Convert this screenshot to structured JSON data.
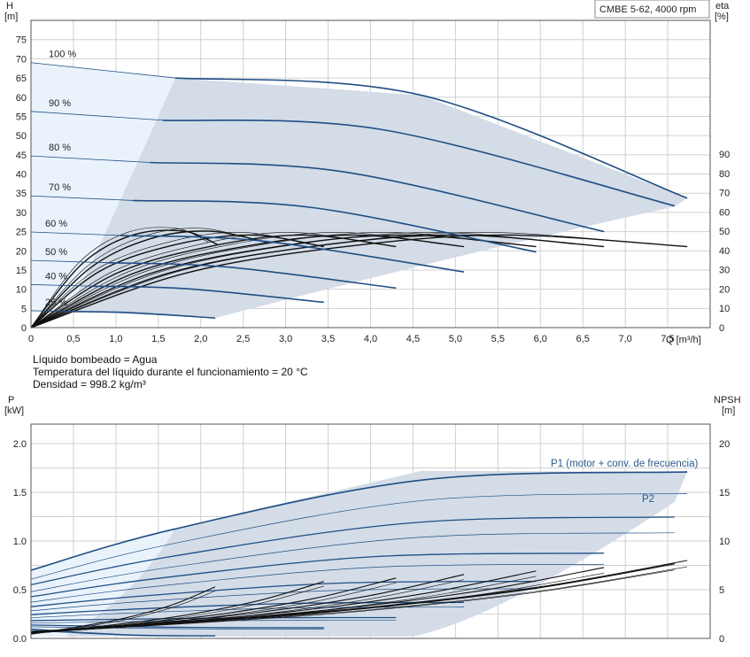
{
  "colors": {
    "area_light": "#eaf3fb",
    "area_main": "#d3dce7",
    "curve_blue": "#1f4e85",
    "curve_black": "#111111",
    "grid": "#d0d0d0",
    "label_blue": "#2a5a8c"
  },
  "chart_data": [
    {
      "type": "line",
      "title": "CMBE 5-62, 4000 rpm",
      "xlabel": "Q [m³/h]",
      "ylabel": "H",
      "ylabel_unit": "[m]",
      "y2label": "eta",
      "y2label_unit": "[%]",
      "xlim": [
        0,
        8
      ],
      "ylim": [
        0,
        80
      ],
      "y2lim": [
        0,
        90
      ],
      "x_ticks": [
        "0",
        "0,5",
        "1,0",
        "1,5",
        "2,0",
        "2,5",
        "3,0",
        "3,5",
        "4,0",
        "4,5",
        "5,0",
        "5,5",
        "6,0",
        "6,5",
        "7,0",
        "7,5"
      ],
      "y_ticks": [
        "0",
        "5",
        "10",
        "15",
        "20",
        "25",
        "30",
        "35",
        "40",
        "45",
        "50",
        "55",
        "60",
        "65",
        "70",
        "75"
      ],
      "y2_ticks": [
        "0",
        "10",
        "20",
        "30",
        "40",
        "50",
        "60",
        "70",
        "80",
        "90"
      ],
      "grid": true,
      "series": [
        {
          "name": "100 %",
          "x": [
            0,
            1.7,
            4.6,
            7.73
          ],
          "y": [
            69,
            65,
            60.5,
            33.7
          ]
        },
        {
          "name": "90 %",
          "x": [
            0,
            1.55,
            4.15,
            7.58
          ],
          "y": [
            56.3,
            54,
            51.5,
            31.7
          ]
        },
        {
          "name": "80 %",
          "x": [
            0,
            1.4,
            3.7,
            6.75
          ],
          "y": [
            44.7,
            43,
            40.5,
            25
          ]
        },
        {
          "name": "70 %",
          "x": [
            0,
            1.2,
            3.3,
            5.95
          ],
          "y": [
            34.3,
            33.1,
            31.3,
            19.7
          ]
        },
        {
          "name": "60 %",
          "x": [
            0,
            1.05,
            2.75,
            5.1
          ],
          "y": [
            24.9,
            24,
            22.5,
            14.5
          ]
        },
        {
          "name": "50 %",
          "x": [
            0,
            0.9,
            2.3,
            4.3
          ],
          "y": [
            17.5,
            16.9,
            15.8,
            10.3
          ]
        },
        {
          "name": "40 %",
          "x": [
            0,
            0.7,
            1.85,
            3.45
          ],
          "y": [
            11.2,
            10.8,
            10.1,
            6.6
          ]
        },
        {
          "name": "25 %",
          "x": [
            0,
            0.45,
            1.15,
            2.17
          ],
          "y": [
            4.4,
            4.2,
            3.9,
            2.5
          ]
        }
      ],
      "efficiency_curves": [
        {
          "x": [
            0,
            0.6,
            1.2,
            1.8,
            2.2
          ],
          "y": [
            0,
            33,
            48,
            50,
            43
          ]
        },
        {
          "x": [
            0,
            0.7,
            1.4,
            2.1,
            2.8
          ],
          "y": [
            0,
            31,
            46,
            50,
            44
          ]
        },
        {
          "x": [
            0,
            0.8,
            1.7,
            2.6,
            3.45
          ],
          "y": [
            0,
            29,
            43,
            48,
            42
          ]
        },
        {
          "x": [
            0,
            1.0,
            2.1,
            3.2,
            4.3
          ],
          "y": [
            0,
            28,
            42,
            48,
            42
          ]
        },
        {
          "x": [
            0,
            1.2,
            2.5,
            3.8,
            5.1
          ],
          "y": [
            0,
            28,
            42,
            48,
            42
          ]
        },
        {
          "x": [
            0,
            1.4,
            2.9,
            4.4,
            5.95
          ],
          "y": [
            0,
            28,
            42,
            48,
            42
          ]
        },
        {
          "x": [
            0,
            1.6,
            3.3,
            5.0,
            6.75
          ],
          "y": [
            0,
            28,
            42,
            48,
            42
          ]
        },
        {
          "x": [
            0,
            1.8,
            3.7,
            5.6,
            7.73
          ],
          "y": [
            0,
            28,
            42,
            48,
            42
          ]
        }
      ],
      "annotations": [
        "Líquido bombeado = Agua",
        "Temperatura del líquido durante el funcionamiento = 20 °C",
        "Densidad = 998.2 kg/m³"
      ]
    },
    {
      "type": "line",
      "ylabel": "P",
      "ylabel_unit": "[kW]",
      "y2label": "NPSH",
      "y2label_unit": "[m]",
      "xlim": [
        0,
        8
      ],
      "ylim": [
        0,
        2.2
      ],
      "y2lim": [
        0,
        22
      ],
      "y_ticks": [
        "0.0",
        "0.5",
        "1.0",
        "1.5",
        "2.0"
      ],
      "y2_ticks": [
        "0",
        "5",
        "10",
        "15",
        "20"
      ],
      "grid": true,
      "series": [
        {
          "name": "P1 (motor + conv. de frecuencia)",
          "x": [
            0,
            1.7,
            4.6,
            7.73
          ],
          "y": [
            0.71,
            1.13,
            1.72,
            1.71
          ]
        },
        {
          "name": "P2",
          "x": [
            0,
            1.7,
            4.6,
            7.58
          ],
          "y": [
            0.62,
            1.0,
            1.5,
            1.5
          ]
        }
      ],
      "npsh_curve": {
        "x": [
          0,
          2,
          4,
          6,
          7.73
        ],
        "y": [
          0.7,
          1.8,
          3.2,
          5.3,
          8
        ]
      }
    }
  ]
}
